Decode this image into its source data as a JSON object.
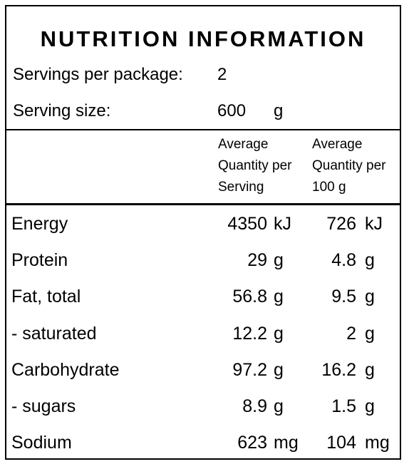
{
  "title": "NUTRITION INFORMATION",
  "servings_per_package": {
    "label": "Servings per package:",
    "value": "2"
  },
  "serving_size": {
    "label": "Serving size:",
    "value": "600",
    "unit": "g"
  },
  "column_headers": {
    "per_serving": [
      "Average",
      "Quantity per",
      "Serving"
    ],
    "per_100g": [
      "Average",
      "Quantity per",
      "100 g"
    ]
  },
  "rows": [
    {
      "label": "Energy",
      "per_serving": "4350",
      "per_serving_unit": "kJ",
      "per_100g": "726",
      "per_100g_unit": "kJ"
    },
    {
      "label": "Protein",
      "per_serving": "29",
      "per_serving_unit": "g",
      "per_100g": "4.8",
      "per_100g_unit": "g"
    },
    {
      "label": "Fat, total",
      "per_serving": "56.8",
      "per_serving_unit": "g",
      "per_100g": "9.5",
      "per_100g_unit": "g"
    },
    {
      "label": "- saturated",
      "per_serving": "12.2",
      "per_serving_unit": "g",
      "per_100g": "2",
      "per_100g_unit": "g"
    },
    {
      "label": "Carbohydrate",
      "per_serving": "97.2",
      "per_serving_unit": "g",
      "per_100g": "16.2",
      "per_100g_unit": "g"
    },
    {
      "label": "- sugars",
      "per_serving": "8.9",
      "per_serving_unit": "g",
      "per_100g": "1.5",
      "per_100g_unit": "g"
    },
    {
      "label": "Sodium",
      "per_serving": "623",
      "per_serving_unit": "mg",
      "per_100g": "104",
      "per_100g_unit": "mg"
    }
  ]
}
